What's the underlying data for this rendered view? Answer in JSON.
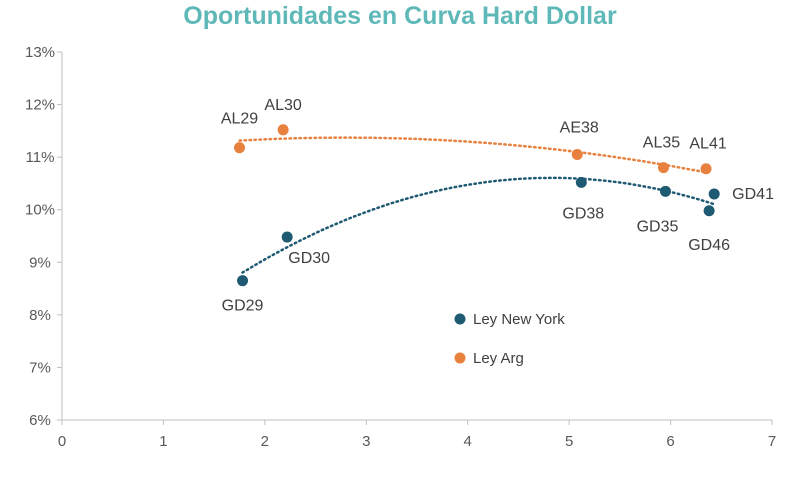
{
  "chart_data": {
    "type": "scatter",
    "title": "Oportunidades  en Curva Hard Dollar",
    "xlim": [
      0,
      7
    ],
    "ylim": [
      6,
      13
    ],
    "x_ticks": [
      "0",
      "1",
      "2",
      "3",
      "4",
      "5",
      "6",
      "7"
    ],
    "y_ticks": [
      "6%",
      "7%",
      "8%",
      "9%",
      "10%",
      "11%",
      "12%",
      "13%"
    ],
    "grid": false,
    "legend_position": "bottom-center",
    "series": [
      {
        "name": "Ley New York",
        "color": "#1f5a73",
        "points": [
          {
            "label": "GD29",
            "x": 1.78,
            "y": 8.65
          },
          {
            "label": "GD30",
            "x": 2.22,
            "y": 9.48
          },
          {
            "label": "GD38",
            "x": 5.12,
            "y": 10.52
          },
          {
            "label": "GD35",
            "x": 5.95,
            "y": 10.35
          },
          {
            "label": "GD46",
            "x": 6.38,
            "y": 9.98
          },
          {
            "label": "GD41",
            "x": 6.43,
            "y": 10.3
          }
        ],
        "trendline": {
          "type": "polynomial",
          "color": "#1f5a73"
        }
      },
      {
        "name": "Ley Arg",
        "color": "#e8813e",
        "points": [
          {
            "label": "AL29",
            "x": 1.75,
            "y": 11.18
          },
          {
            "label": "AL30",
            "x": 2.18,
            "y": 11.52
          },
          {
            "label": "AE38",
            "x": 5.08,
            "y": 11.05
          },
          {
            "label": "AL35",
            "x": 5.93,
            "y": 10.8
          },
          {
            "label": "AL41",
            "x": 6.35,
            "y": 10.78
          }
        ],
        "trendline": {
          "type": "polynomial",
          "color": "#e8813e"
        }
      }
    ],
    "colors": {
      "title": "#5fb8b8",
      "axis": "#bfbfbf",
      "ticks": "#595959",
      "labels": "#404040"
    }
  }
}
